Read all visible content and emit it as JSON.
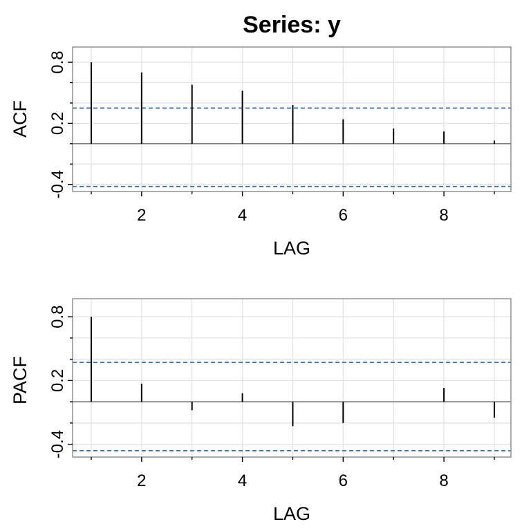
{
  "title": "Series:  y",
  "chart_data": [
    {
      "type": "bar",
      "subtype": "acf-stem",
      "ylabel": "ACF",
      "xlabel": "LAG",
      "x": [
        1,
        2,
        3,
        4,
        5,
        6,
        7,
        8,
        9
      ],
      "values": [
        0.8,
        0.7,
        0.58,
        0.52,
        0.38,
        0.24,
        0.15,
        0.12,
        0.03
      ],
      "xlim": [
        0.63,
        9.33
      ],
      "ylim": [
        -0.47,
        0.95
      ],
      "x_ticks": [
        2,
        4,
        6,
        8
      ],
      "x_minor_ticks": [
        1,
        3,
        5,
        7,
        9
      ],
      "y_ticks": [
        -0.4,
        0.2,
        0.8
      ],
      "y_minor_ticks": [
        -0.2,
        0.0,
        0.4,
        0.6
      ],
      "confidence_bounds": [
        0.35,
        -0.42
      ],
      "grid": true,
      "colors": {
        "stem": "#000000",
        "bound": "#2b6cc4",
        "grid": "#e3e3e3",
        "zero": "#808080",
        "frame": "#8a8a8a"
      }
    },
    {
      "type": "bar",
      "subtype": "pacf-stem",
      "ylabel": "PACF",
      "xlabel": "LAG",
      "x": [
        1,
        2,
        3,
        4,
        5,
        6,
        7,
        8,
        9
      ],
      "values": [
        0.8,
        0.17,
        -0.08,
        0.08,
        -0.23,
        -0.2,
        0.0,
        0.13,
        -0.15
      ],
      "xlim": [
        0.63,
        9.33
      ],
      "ylim": [
        -0.52,
        0.97
      ],
      "x_ticks": [
        2,
        4,
        6,
        8
      ],
      "x_minor_ticks": [
        1,
        3,
        5,
        7,
        9
      ],
      "y_ticks": [
        -0.4,
        0.2,
        0.8
      ],
      "y_minor_ticks": [
        -0.2,
        0.0,
        0.4,
        0.6
      ],
      "confidence_bounds": [
        0.37,
        -0.46
      ],
      "grid": true,
      "colors": {
        "stem": "#000000",
        "bound": "#2b6cc4",
        "grid": "#e3e3e3",
        "zero": "#808080",
        "frame": "#8a8a8a"
      }
    }
  ]
}
